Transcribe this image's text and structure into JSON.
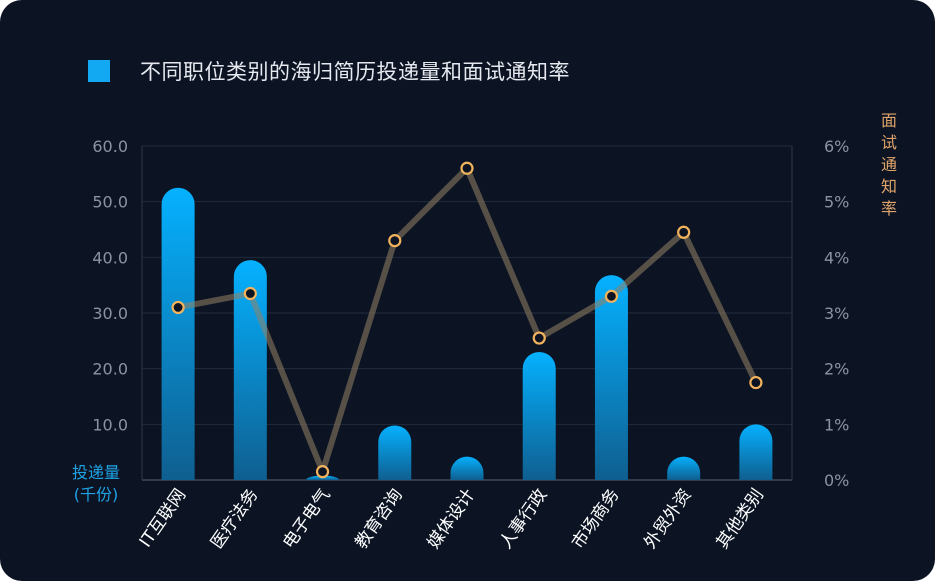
{
  "chart_data": {
    "type": "bar+line",
    "title": "不同职位类别的海归简历投递量和面试通知率",
    "legend": {
      "label": "不同职位类别的海归简历投递量和面试通知率",
      "color": "#12a8f2",
      "placement": "top-left"
    },
    "categories": [
      "IT互联网",
      "医疗法务",
      "电子电气",
      "教育咨询",
      "媒体设计",
      "人事行政",
      "市场商务",
      "外贸外资",
      "其他类别"
    ],
    "series": [
      {
        "type": "bar",
        "axis": "left",
        "values": [
          52.5,
          39.5,
          0.8,
          9.8,
          4.2,
          23.0,
          36.8,
          4.2,
          10.0
        ],
        "color": "#0aa8f5"
      },
      {
        "type": "line",
        "axis": "right",
        "values": [
          3.1,
          3.35,
          0.15,
          4.3,
          5.6,
          2.55,
          3.3,
          4.45,
          1.75
        ],
        "color": "#e6a552"
      }
    ],
    "y_left": {
      "title": "投递量\n(千份)",
      "min": 0,
      "max": 60,
      "ticks": [
        "60.0",
        "50.0",
        "40.0",
        "30.0",
        "20.0",
        "10.0"
      ]
    },
    "y_right": {
      "title": "面试通知率",
      "min": 0,
      "max": 6,
      "ticks": [
        "6%",
        "5%",
        "4%",
        "3%",
        "2%",
        "1%",
        "0%"
      ]
    },
    "grid": true
  }
}
